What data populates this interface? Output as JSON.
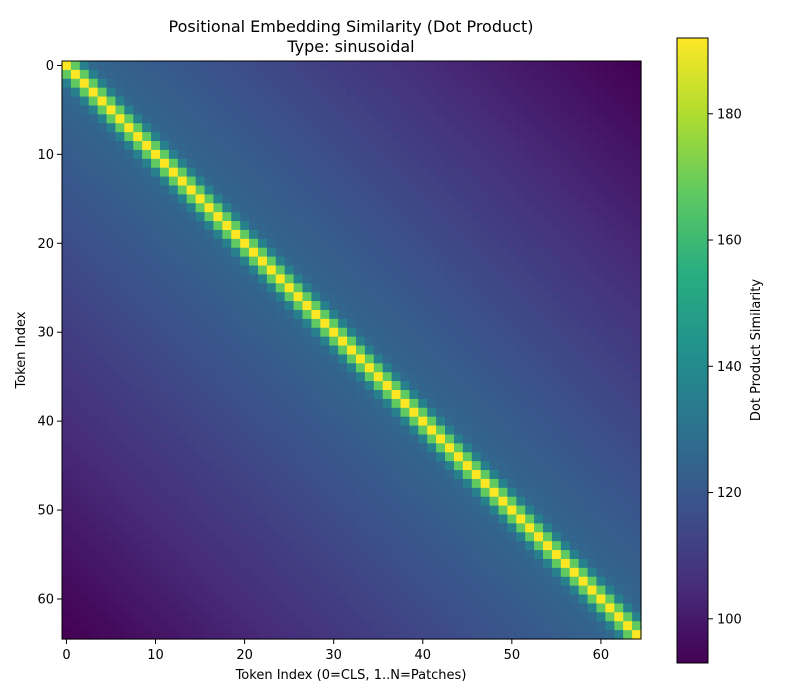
{
  "chart_data": {
    "type": "heatmap",
    "title": "Positional Embedding Similarity (Dot Product)",
    "subtitle": "Type: sinusoidal",
    "xlabel": "Token Index (0=CLS, 1..N=Patches)",
    "ylabel": "Token Index",
    "size": 65,
    "x_ticks": [
      0,
      10,
      20,
      30,
      40,
      50,
      60
    ],
    "y_ticks": [
      0,
      10,
      20,
      30,
      40,
      50,
      60
    ],
    "xlim": [
      -0.5,
      64.5
    ],
    "ylim": [
      64.5,
      -0.5
    ],
    "colormap": "viridis",
    "value_range": [
      93,
      192
    ],
    "diagonal_value": 192,
    "far_value": 93,
    "colorbar": {
      "label": "Dot Product Similarity",
      "ticks": [
        100,
        120,
        140,
        160,
        180
      ],
      "range": [
        93,
        192
      ]
    },
    "grid": false
  }
}
